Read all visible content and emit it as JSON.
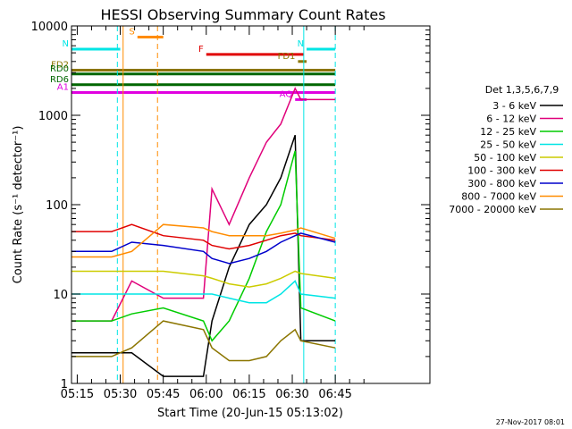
{
  "chart_data": {
    "type": "line",
    "title": "HESSI Observing Summary Count Rates",
    "xlabel": "Start Time (20-Jun-15 05:13:02)",
    "ylabel": "Count Rate (s⁻¹ detector⁻¹)",
    "ylog": true,
    "ylim": [
      1,
      10000
    ],
    "xlim_min": [
      0,
      125
    ],
    "x_ticks": [
      {
        "label": "05:15",
        "min": 2
      },
      {
        "label": "05:30",
        "min": 17
      },
      {
        "label": "05:45",
        "min": 32
      },
      {
        "label": "06:00",
        "min": 47
      },
      {
        "label": "06:15",
        "min": 62
      },
      {
        "label": "06:30",
        "min": 77
      },
      {
        "label": "06:45",
        "min": 92
      }
    ],
    "y_ticks": [
      {
        "label": "1",
        "v": 1
      },
      {
        "label": "10",
        "v": 10
      },
      {
        "label": "100",
        "v": 100
      },
      {
        "label": "1000",
        "v": 1000
      },
      {
        "label": "10000",
        "v": 10000
      }
    ],
    "legend_title": "Det 1,3,5,6,7,9",
    "legend_position": "right",
    "series": [
      {
        "name": "3 - 6 keV",
        "color": "#000000",
        "points": [
          [
            0,
            2.2
          ],
          [
            14,
            2.2
          ],
          [
            21,
            2.2
          ],
          [
            32,
            1.2
          ],
          [
            46,
            1.2
          ],
          [
            49,
            5
          ],
          [
            55,
            20
          ],
          [
            62,
            60
          ],
          [
            68,
            100
          ],
          [
            73,
            200
          ],
          [
            78,
            600
          ],
          [
            80,
            3
          ],
          [
            92,
            3
          ]
        ]
      },
      {
        "name": "6 - 12 keV",
        "color": "#e0007a",
        "points": [
          [
            0,
            5
          ],
          [
            14,
            5
          ],
          [
            21,
            14
          ],
          [
            32,
            9
          ],
          [
            46,
            9
          ],
          [
            49,
            150
          ],
          [
            55,
            60
          ],
          [
            62,
            200
          ],
          [
            68,
            500
          ],
          [
            73,
            800
          ],
          [
            78,
            2000
          ],
          [
            80,
            1500
          ],
          [
            92,
            1500
          ]
        ]
      },
      {
        "name": "12 - 25 keV",
        "color": "#00cc00",
        "points": [
          [
            0,
            5
          ],
          [
            14,
            5
          ],
          [
            21,
            6
          ],
          [
            32,
            7
          ],
          [
            46,
            5
          ],
          [
            49,
            3
          ],
          [
            55,
            5
          ],
          [
            62,
            15
          ],
          [
            68,
            50
          ],
          [
            73,
            100
          ],
          [
            78,
            400
          ],
          [
            80,
            7
          ],
          [
            92,
            5
          ]
        ]
      },
      {
        "name": "25 - 50 keV",
        "color": "#00e5e5",
        "points": [
          [
            0,
            10
          ],
          [
            14,
            10
          ],
          [
            21,
            10
          ],
          [
            32,
            10
          ],
          [
            46,
            10
          ],
          [
            49,
            10
          ],
          [
            55,
            9
          ],
          [
            62,
            8
          ],
          [
            68,
            8
          ],
          [
            73,
            10
          ],
          [
            78,
            14
          ],
          [
            80,
            10
          ],
          [
            92,
            9
          ]
        ]
      },
      {
        "name": "50 - 100 keV",
        "color": "#cccc00",
        "points": [
          [
            0,
            18
          ],
          [
            14,
            18
          ],
          [
            21,
            18
          ],
          [
            32,
            18
          ],
          [
            46,
            16
          ],
          [
            49,
            15
          ],
          [
            55,
            13
          ],
          [
            62,
            12
          ],
          [
            68,
            13
          ],
          [
            73,
            15
          ],
          [
            78,
            18
          ],
          [
            80,
            17
          ],
          [
            92,
            15
          ]
        ]
      },
      {
        "name": "100 - 300 keV",
        "color": "#e00000",
        "points": [
          [
            0,
            50
          ],
          [
            14,
            50
          ],
          [
            21,
            60
          ],
          [
            32,
            45
          ],
          [
            46,
            40
          ],
          [
            49,
            35
          ],
          [
            55,
            32
          ],
          [
            62,
            35
          ],
          [
            68,
            40
          ],
          [
            73,
            45
          ],
          [
            78,
            48
          ],
          [
            80,
            45
          ],
          [
            92,
            40
          ]
        ]
      },
      {
        "name": "300 - 800 keV",
        "color": "#0000cc",
        "points": [
          [
            0,
            30
          ],
          [
            14,
            30
          ],
          [
            21,
            38
          ],
          [
            32,
            35
          ],
          [
            46,
            30
          ],
          [
            49,
            25
          ],
          [
            55,
            22
          ],
          [
            62,
            25
          ],
          [
            68,
            30
          ],
          [
            73,
            38
          ],
          [
            78,
            45
          ],
          [
            80,
            48
          ],
          [
            92,
            38
          ]
        ]
      },
      {
        "name": "800 - 7000 keV",
        "color": "#ff8c00",
        "points": [
          [
            0,
            26
          ],
          [
            14,
            26
          ],
          [
            21,
            30
          ],
          [
            32,
            60
          ],
          [
            46,
            55
          ],
          [
            49,
            50
          ],
          [
            55,
            45
          ],
          [
            62,
            45
          ],
          [
            68,
            45
          ],
          [
            73,
            48
          ],
          [
            78,
            52
          ],
          [
            80,
            55
          ],
          [
            92,
            42
          ]
        ]
      },
      {
        "name": "7000 - 20000 keV",
        "color": "#8b7500",
        "points": [
          [
            0,
            2
          ],
          [
            14,
            2
          ],
          [
            21,
            2.5
          ],
          [
            32,
            5
          ],
          [
            46,
            4
          ],
          [
            49,
            2.5
          ],
          [
            55,
            1.8
          ],
          [
            62,
            1.8
          ],
          [
            68,
            2
          ],
          [
            73,
            3
          ],
          [
            78,
            4
          ],
          [
            80,
            3
          ],
          [
            92,
            2.5
          ]
        ]
      }
    ],
    "flag_bars": [
      {
        "label": "S",
        "color": "#ff8c00",
        "x_start": 23,
        "x_end": 32,
        "v": 7500
      },
      {
        "label": "N",
        "color": "#00e5e5",
        "x_start": 0,
        "x_end": 17,
        "v": 5500
      },
      {
        "label": "N",
        "color": "#00e5e5",
        "x_start": 82,
        "x_end": 92,
        "v": 5500
      },
      {
        "label": "F",
        "color": "#e00000",
        "x_start": 47,
        "x_end": 81,
        "v": 4800
      },
      {
        "label": "FD1",
        "color": "#8b7500",
        "x_start": 79,
        "x_end": 82,
        "v": 4000
      },
      {
        "label": "FD2",
        "color": "#8b7500",
        "x_start": 0,
        "x_end": 92,
        "v": 3200
      },
      {
        "label": "RD0",
        "color": "#006600",
        "x_start": 0,
        "x_end": 92,
        "v": 2900
      },
      {
        "label": "RD6",
        "color": "#006600",
        "x_start": 0,
        "x_end": 92,
        "v": 2200
      },
      {
        "label": "A1",
        "color": "#e000e0",
        "x_start": 0,
        "x_end": 92,
        "v": 1800
      },
      {
        "label": "AQ",
        "color": "#e000e0",
        "x_start": 78,
        "x_end": 82,
        "v": 1500
      }
    ],
    "vlines": [
      {
        "min": 0,
        "color": "#00e5e5",
        "style": "solid"
      },
      {
        "min": 16,
        "color": "#00e5e5",
        "style": "dashed"
      },
      {
        "min": 18,
        "color": "#ff8c00",
        "style": "solid"
      },
      {
        "min": 30,
        "color": "#ff8c00",
        "style": "dashed"
      },
      {
        "min": 81,
        "color": "#00e5e5",
        "style": "solid"
      },
      {
        "min": 92,
        "color": "#00e5e5",
        "style": "dashed"
      }
    ]
  },
  "footer": {
    "date": "27-Nov-2017 08:01"
  }
}
